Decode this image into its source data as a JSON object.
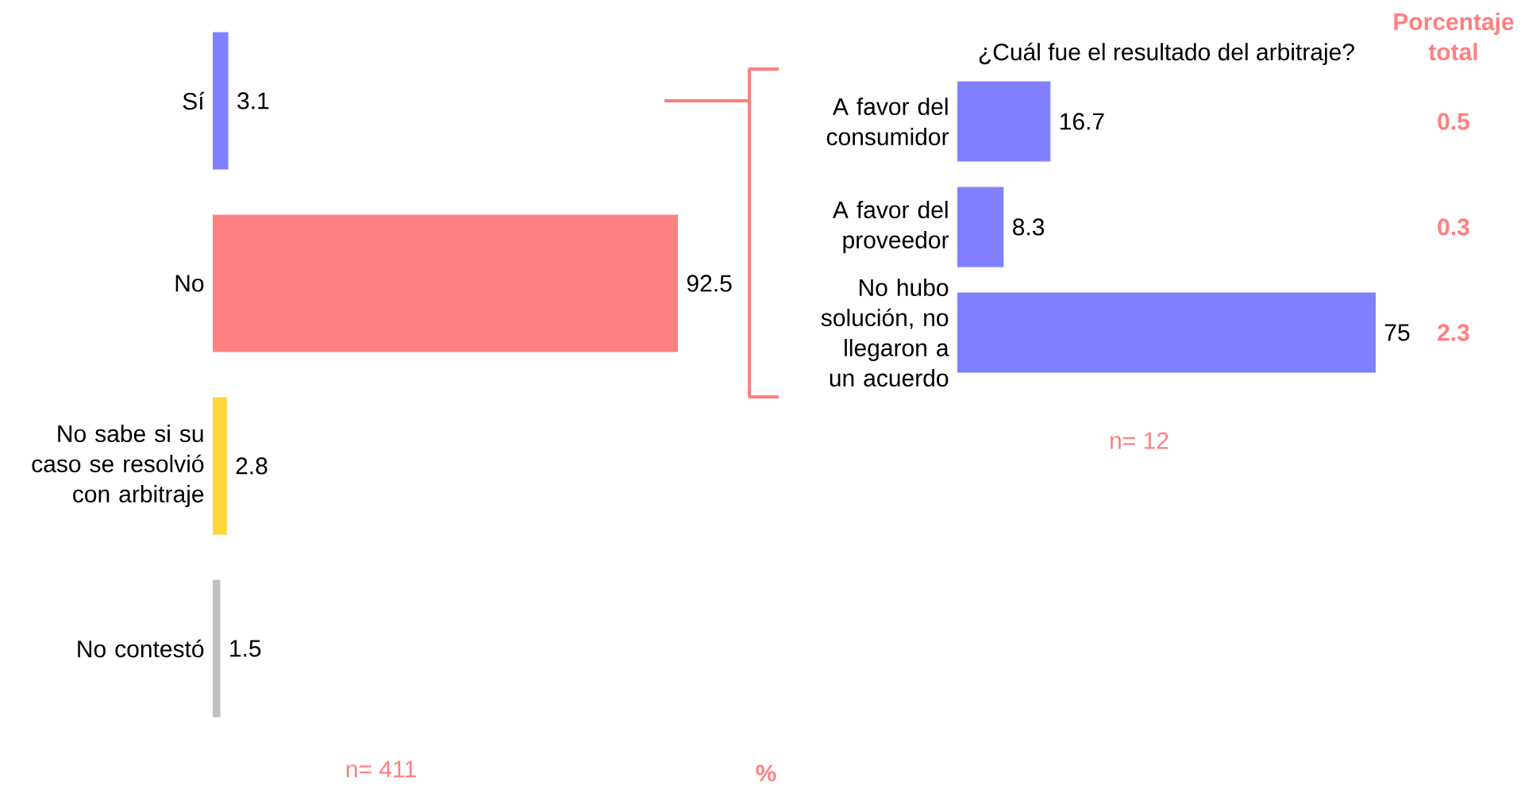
{
  "chart_data": [
    {
      "type": "bar",
      "orientation": "horizontal",
      "categories": [
        "Sí",
        "No",
        "No sabe si su caso se resolvió con arbitraje",
        "No contestó"
      ],
      "values": [
        3.1,
        92.5,
        2.8,
        1.5
      ],
      "colors": [
        "#8080ff",
        "#ff8080",
        "#ffd43b",
        "#c0c0c0"
      ],
      "data_labels": true,
      "annotations": [
        "n= 411",
        "%"
      ]
    },
    {
      "type": "bar",
      "orientation": "horizontal",
      "title": "¿Cuál fue el resultado del arbitraje?",
      "categories": [
        "A favor del consumidor",
        "A favor del proveedor",
        "No hubo solución, no llegaron a un acuerdo"
      ],
      "values": [
        16.7,
        8.3,
        75
      ],
      "color": "#8080ff",
      "data_labels": true,
      "annotations": [
        "n= 12",
        "Porcentaje total",
        "0.5",
        "0.3",
        "2.3"
      ]
    }
  ]
}
